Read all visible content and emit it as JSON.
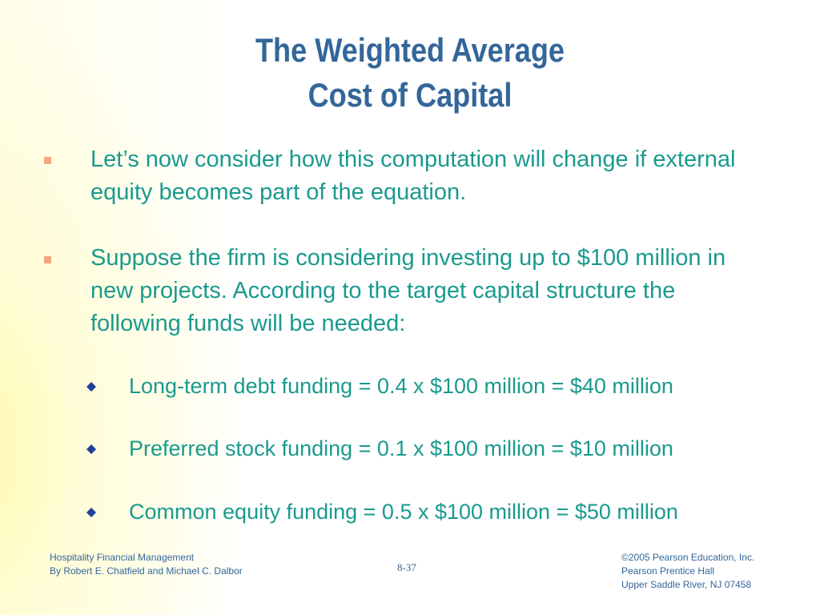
{
  "title": {
    "line1": "The Weighted Average",
    "line2": "Cost of Capital"
  },
  "bullets": [
    "Let’s now consider how this computation will change if external equity becomes part of the equation.",
    "Suppose the firm is considering investing up to $100 million in new projects.  According to the target capital structure the following funds will be needed:"
  ],
  "sub_bullets": [
    "Long-term debt funding = 0.4 x $100 million = $40 million",
    "Preferred stock funding = 0.1 x $100 million = $10 million",
    "Common equity funding = 0.5 x $100 million = $50 million"
  ],
  "footer": {
    "left": [
      "Hospitality Financial Management",
      "By Robert E. Chatfield and Michael C. Dalbor"
    ],
    "center": "8-37",
    "right": [
      "©2005 Pearson Education, Inc.",
      "Pearson Prentice Hall",
      "Upper Saddle River, NJ 07458"
    ]
  },
  "colors": {
    "title": "#336699",
    "body": "#1a9a8f",
    "bullet_square": "#f4a582",
    "diamond": "#1f3f99",
    "background_glow": "#fffaa8"
  },
  "icons": {
    "bullet": "square-bullet-icon",
    "sub_bullet": "diamond-bullet-icon"
  }
}
